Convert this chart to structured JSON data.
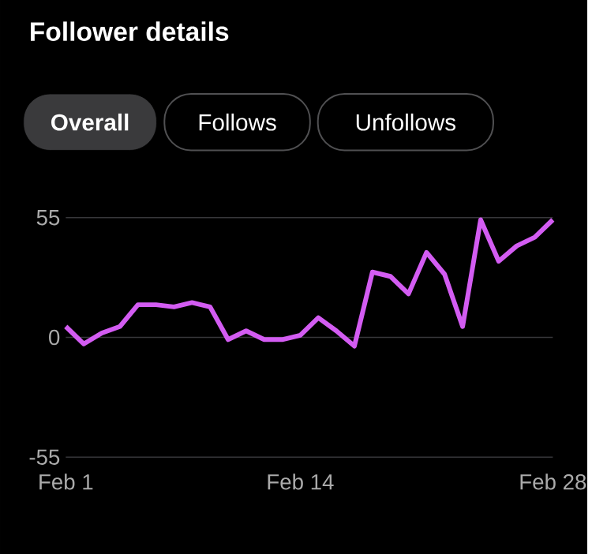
{
  "chart_data": {
    "type": "line",
    "title": "Follower details",
    "annotations": [
      "Overall",
      "Follows",
      "Unfollows"
    ],
    "categories": [
      "Feb 1",
      null,
      null,
      null,
      null,
      null,
      null,
      null,
      null,
      null,
      null,
      null,
      null,
      "Feb 14",
      null,
      null,
      null,
      null,
      null,
      null,
      null,
      null,
      null,
      null,
      null,
      null,
      null,
      "Feb 28"
    ],
    "series": [
      {
        "color": "#d35cf2",
        "values": [
          5,
          -3,
          2,
          5,
          15,
          15,
          14,
          16,
          14,
          -1,
          3,
          -1,
          -1,
          1,
          9,
          3,
          -4,
          30,
          28,
          20,
          39,
          29,
          5,
          54,
          35,
          42,
          46,
          54
        ]
      }
    ],
    "ylim": [
      -55,
      55
    ],
    "yticks": [
      -55,
      0,
      55
    ],
    "grid": "y",
    "marker": "none",
    "line_style": "solid"
  }
}
